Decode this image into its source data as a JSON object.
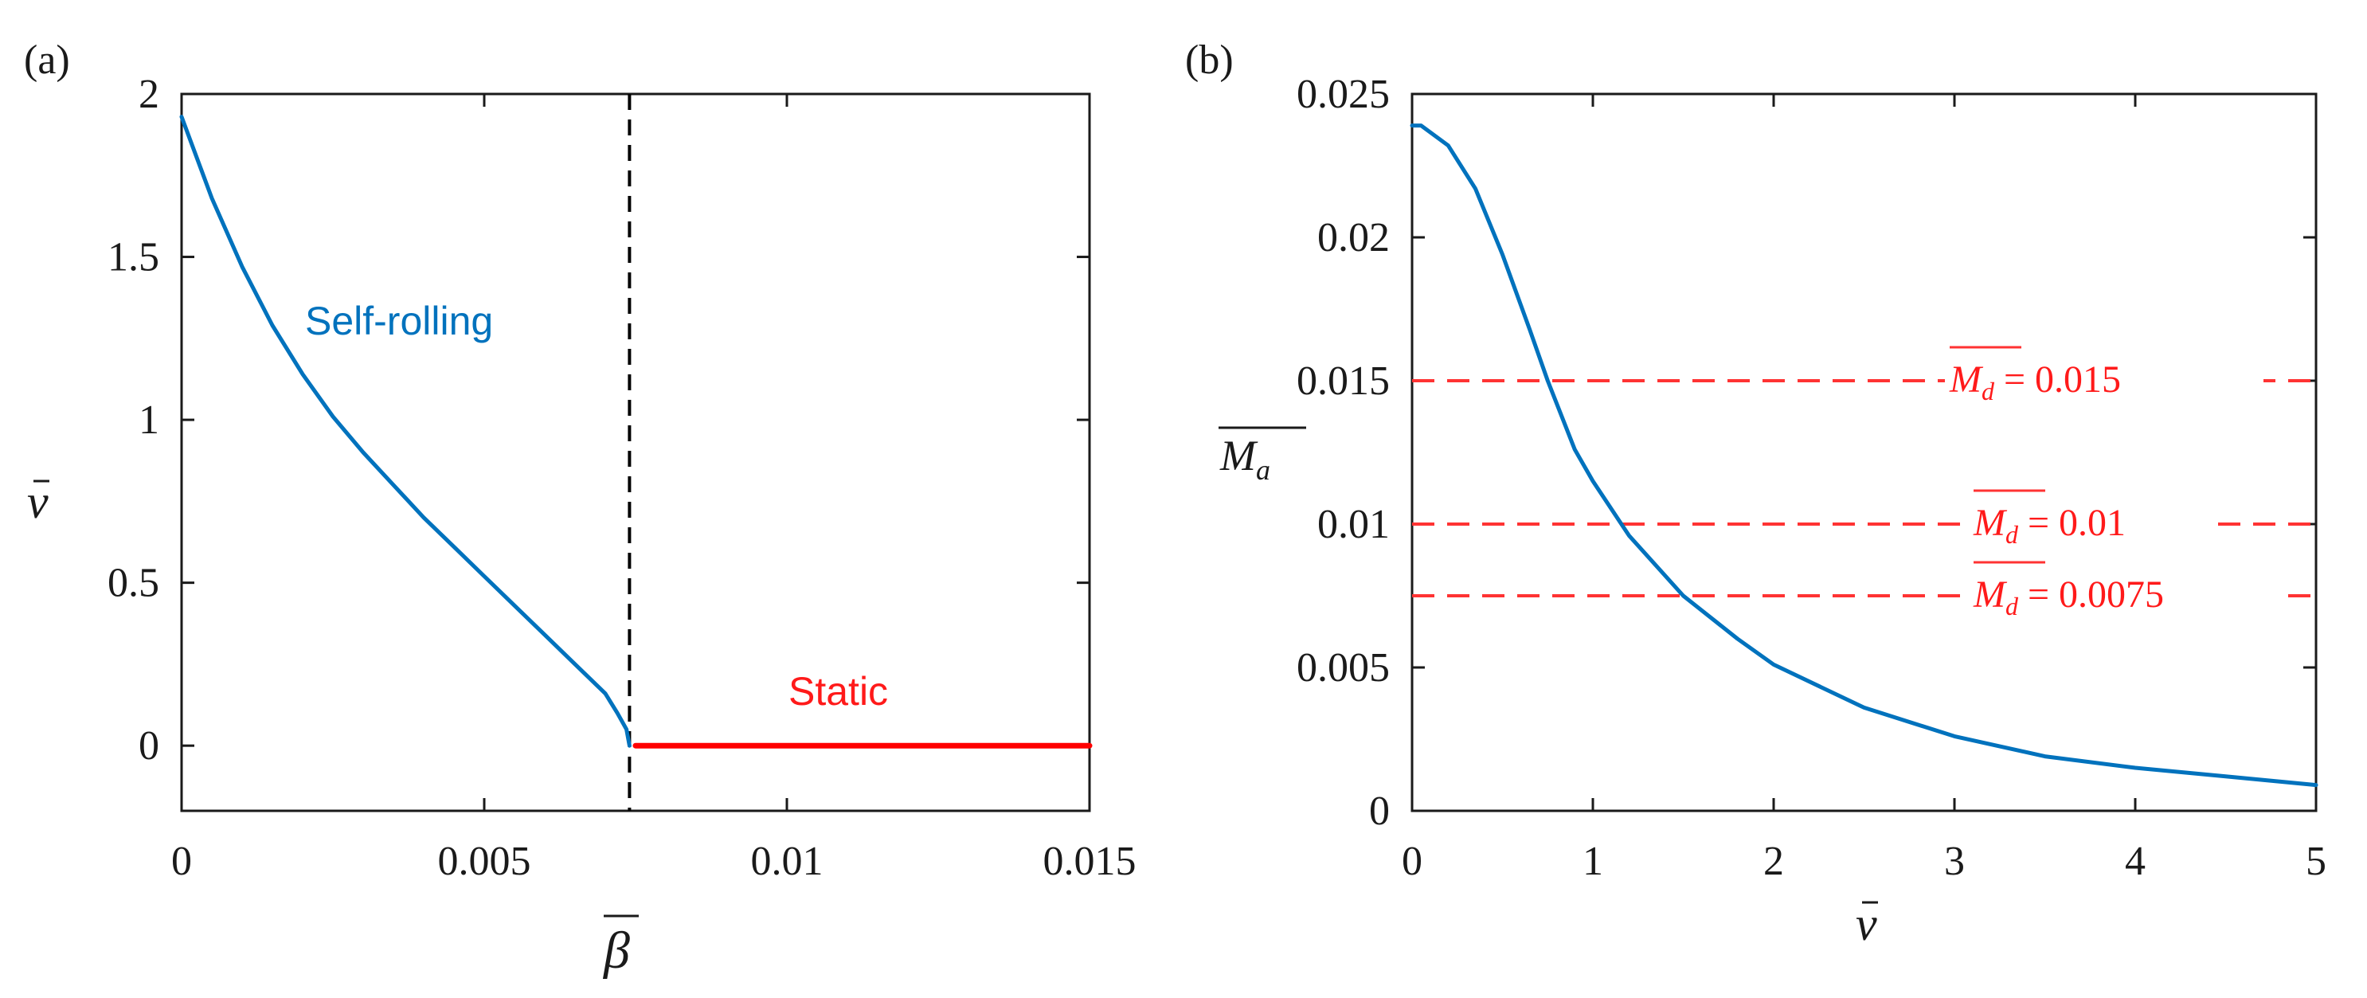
{
  "panels": {
    "a_label": "(a)",
    "b_label": "(b)"
  },
  "chart_data": [
    {
      "type": "line",
      "panel": "(a)",
      "xlabel": "β",
      "ylabel": "v",
      "xlim": [
        0,
        0.015
      ],
      "ylim": [
        -0.2,
        2.0
      ],
      "xticks": [
        0,
        0.005,
        0.01,
        0.015
      ],
      "xtick_labels": [
        "0",
        "0.005",
        "0.01",
        "0.015"
      ],
      "yticks": [
        0,
        0.5,
        1,
        1.5,
        2
      ],
      "ytick_labels": [
        "0",
        "0.5",
        "1",
        "1.5",
        "2"
      ],
      "series": [
        {
          "name": "Self-rolling",
          "color": "#0072BD",
          "x": [
            0,
            0.0005,
            0.001,
            0.0015,
            0.002,
            0.0025,
            0.003,
            0.0035,
            0.004,
            0.0045,
            0.005,
            0.0055,
            0.006,
            0.0065,
            0.007,
            0.0072,
            0.00735,
            0.0074
          ],
          "y": [
            1.93,
            1.68,
            1.47,
            1.29,
            1.14,
            1.01,
            0.9,
            0.8,
            0.7,
            0.61,
            0.52,
            0.43,
            0.34,
            0.25,
            0.16,
            0.1,
            0.05,
            0.0
          ]
        },
        {
          "name": "Static",
          "color": "#ff0000",
          "x": [
            0.0075,
            0.015
          ],
          "y": [
            0,
            0
          ]
        }
      ],
      "vline": {
        "x": 0.0074,
        "style": "dashed",
        "color": "#000000"
      },
      "annotations": [
        {
          "text": "Self-rolling",
          "color": "#0072BD"
        },
        {
          "text": "Static",
          "color": "#ff1a1a"
        }
      ]
    },
    {
      "type": "line",
      "panel": "(b)",
      "xlabel": "v",
      "ylabel": "Ma",
      "xlim": [
        0,
        5
      ],
      "ylim": [
        0,
        0.025
      ],
      "xticks": [
        0,
        1,
        2,
        3,
        4,
        5
      ],
      "xtick_labels": [
        "0",
        "1",
        "2",
        "3",
        "4",
        "5"
      ],
      "yticks": [
        0,
        0.005,
        0.01,
        0.015,
        0.02,
        0.025
      ],
      "ytick_labels": [
        "0",
        "0.005",
        "0.01",
        "0.015",
        "0.02",
        "0.025"
      ],
      "series": [
        {
          "name": "Ma",
          "color": "#0072BD",
          "x": [
            0,
            0.05,
            0.2,
            0.35,
            0.5,
            0.65,
            0.75,
            0.9,
            1.0,
            1.2,
            1.5,
            1.8,
            2.0,
            2.5,
            3.0,
            3.5,
            4.0,
            4.5,
            5.0
          ],
          "y": [
            0.0239,
            0.0239,
            0.0232,
            0.0217,
            0.0194,
            0.0168,
            0.015,
            0.0126,
            0.0115,
            0.0096,
            0.0075,
            0.006,
            0.0051,
            0.0036,
            0.0026,
            0.0019,
            0.0015,
            0.0012,
            0.0009
          ]
        }
      ],
      "hlines": [
        {
          "y": 0.015,
          "label_value": "= 0.015",
          "color": "#ff3333",
          "style": "dashed"
        },
        {
          "y": 0.01,
          "label_value": "= 0.01",
          "color": "#ff3333",
          "style": "dashed"
        },
        {
          "y": 0.0075,
          "label_value": "= 0.0075",
          "color": "#ff3333",
          "style": "dashed"
        }
      ],
      "hline_symbol": "M",
      "hline_subscript": "d"
    }
  ]
}
